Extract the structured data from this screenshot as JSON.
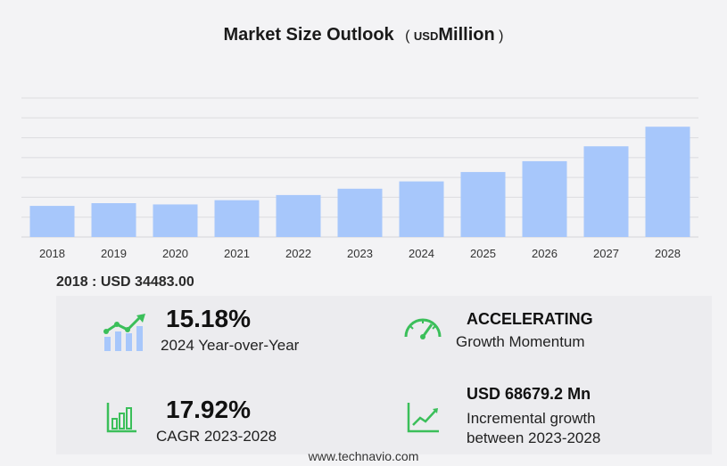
{
  "title": {
    "main": "Market Size Outlook",
    "paren_open": "(",
    "unit": "USD",
    "unit_suffix": "Million",
    "paren_close": ")"
  },
  "colors": {
    "bar": "#a7c7fb",
    "grid": "#dcdcdf",
    "accent_green": "#3bbf5a",
    "background": "#f3f3f5"
  },
  "chart_data": {
    "type": "bar",
    "categories": [
      "2018",
      "2019",
      "2020",
      "2021",
      "2022",
      "2023",
      "2024",
      "2025",
      "2026",
      "2027",
      "2028"
    ],
    "values": [
      34483.0,
      37500,
      36100,
      40800,
      46500,
      53500,
      61600,
      72000,
      84000,
      100500,
      122200
    ],
    "title": "Market Size Outlook",
    "xlabel": "",
    "ylabel": "",
    "ylim": [
      0,
      154000
    ],
    "grid": true,
    "legend": "none",
    "y_ticks_visible": false
  },
  "base": {
    "text": "2018 : USD  34483.00"
  },
  "kpis": {
    "yoy": {
      "value": "15.18%",
      "label": "2024 Year-over-Year",
      "icon": "growth-bars-icon"
    },
    "momentum": {
      "value": "ACCELERATING",
      "label": "Growth Momentum",
      "icon": "speedometer-icon"
    },
    "cagr": {
      "value": "17.92%",
      "label": "CAGR 2023-2028",
      "icon": "bar-chart-icon"
    },
    "incremental": {
      "value": "USD 68679.2 Mn",
      "label_line1": "Incremental growth",
      "label_line2": "between 2023-2028",
      "icon": "line-chart-icon"
    }
  },
  "footer": {
    "text": "www.technavio.com"
  }
}
